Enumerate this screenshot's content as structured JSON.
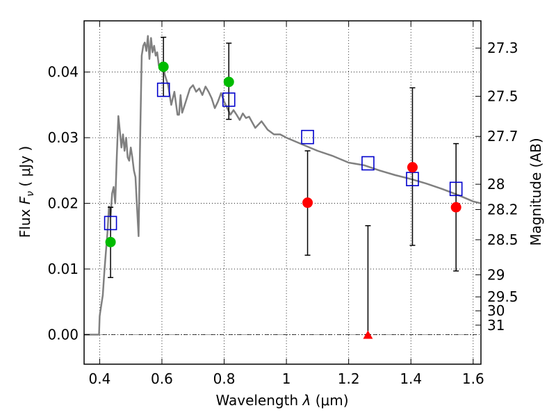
{
  "chart_data": {
    "type": "scatter",
    "xlabel_main": "Wavelength",
    "xlabel_var": "λ",
    "xlabel_unit": "(μm)",
    "ylabel_main": "Flux",
    "ylabel_var": "F",
    "ylabel_sub": "ν",
    "ylabel_unit": "( μJy )",
    "y2label": "Magnitude (AB)",
    "xlim": [
      0.35,
      1.625
    ],
    "ylim": [
      -0.0045,
      0.0478
    ],
    "x_ticks": [
      {
        "value": 0.4,
        "label": "0.4"
      },
      {
        "value": 0.6,
        "label": "0.6"
      },
      {
        "value": 0.8,
        "label": "0.8"
      },
      {
        "value": 1.0,
        "label": "1"
      },
      {
        "value": 1.2,
        "label": "1.2"
      },
      {
        "value": 1.4,
        "label": "1.4"
      },
      {
        "value": 1.6,
        "label": "1.6"
      }
    ],
    "y_ticks": [
      {
        "value": 0.0,
        "label": "0.00"
      },
      {
        "value": 0.01,
        "label": "0.01"
      },
      {
        "value": 0.02,
        "label": "0.02"
      },
      {
        "value": 0.03,
        "label": "0.03"
      },
      {
        "value": 0.04,
        "label": "0.04"
      }
    ],
    "y2_ticks": [
      {
        "mag": 27.3,
        "label": "27.3"
      },
      {
        "mag": 27.5,
        "label": "27.5"
      },
      {
        "mag": 27.7,
        "label": "27.7"
      },
      {
        "mag": 28.0,
        "label": "28"
      },
      {
        "mag": 28.2,
        "label": "28.2"
      },
      {
        "mag": 28.5,
        "label": "28.5"
      },
      {
        "mag": 29.0,
        "label": "29"
      },
      {
        "mag": 29.5,
        "label": "29.5"
      },
      {
        "mag": 30.0,
        "label": "30"
      },
      {
        "mag": 31.0,
        "label": "31"
      }
    ],
    "grid": true,
    "zero_line": true,
    "colors": {
      "model": "#808080",
      "model_photometry": "#0000cc",
      "green_detection": "#00bb00",
      "red_detection": "#ff0000",
      "error_bar": "#000000"
    },
    "series": [
      {
        "name": "model-spectrum",
        "kind": "line",
        "x": [
          0.35,
          0.398,
          0.4,
          0.402,
          0.41,
          0.415,
          0.42,
          0.425,
          0.43,
          0.435,
          0.44,
          0.445,
          0.45,
          0.455,
          0.46,
          0.465,
          0.47,
          0.475,
          0.48,
          0.485,
          0.49,
          0.495,
          0.5,
          0.505,
          0.51,
          0.515,
          0.52,
          0.525,
          0.53,
          0.535,
          0.54,
          0.545,
          0.55,
          0.555,
          0.56,
          0.565,
          0.57,
          0.575,
          0.58,
          0.585,
          0.59,
          0.595,
          0.6,
          0.605,
          0.61,
          0.62,
          0.63,
          0.64,
          0.65,
          0.655,
          0.66,
          0.665,
          0.67,
          0.68,
          0.69,
          0.7,
          0.71,
          0.72,
          0.73,
          0.74,
          0.75,
          0.76,
          0.77,
          0.78,
          0.79,
          0.8,
          0.81,
          0.82,
          0.83,
          0.84,
          0.85,
          0.86,
          0.87,
          0.88,
          0.9,
          0.92,
          0.94,
          0.96,
          0.98,
          1.0,
          1.05,
          1.1,
          1.15,
          1.2,
          1.25,
          1.3,
          1.35,
          1.4,
          1.45,
          1.5,
          1.55,
          1.6,
          1.625
        ],
        "y": [
          0.0,
          0.0,
          0.0028,
          0.0035,
          0.006,
          0.0095,
          0.0125,
          0.0155,
          0.0195,
          0.018,
          0.0215,
          0.0225,
          0.02,
          0.027,
          0.0333,
          0.031,
          0.0285,
          0.0305,
          0.028,
          0.03,
          0.027,
          0.0265,
          0.0285,
          0.027,
          0.025,
          0.024,
          0.0195,
          0.015,
          0.0295,
          0.0425,
          0.044,
          0.0445,
          0.0432,
          0.0455,
          0.042,
          0.0452,
          0.043,
          0.044,
          0.0425,
          0.043,
          0.041,
          0.041,
          0.0415,
          0.0405,
          0.0395,
          0.038,
          0.035,
          0.037,
          0.0335,
          0.0335,
          0.0365,
          0.0338,
          0.0345,
          0.036,
          0.0375,
          0.038,
          0.037,
          0.0375,
          0.0365,
          0.0378,
          0.037,
          0.036,
          0.0345,
          0.0355,
          0.0368,
          0.0355,
          0.0345,
          0.0335,
          0.0342,
          0.0335,
          0.0327,
          0.0337,
          0.033,
          0.0332,
          0.0315,
          0.0325,
          0.0312,
          0.0305,
          0.0305,
          0.03,
          0.029,
          0.028,
          0.0272,
          0.0262,
          0.0258,
          0.025,
          0.0243,
          0.0237,
          0.023,
          0.0222,
          0.0213,
          0.0203,
          0.02
        ]
      },
      {
        "name": "model-photometry",
        "kind": "open-square",
        "x": [
          0.435,
          0.605,
          0.815,
          1.068,
          1.262,
          1.405,
          1.545
        ],
        "y": [
          0.017,
          0.0373,
          0.0358,
          0.0301,
          0.0261,
          0.0237,
          0.0222
        ]
      },
      {
        "name": "observed-green",
        "kind": "filled-circle",
        "x": [
          0.435,
          0.605,
          0.815
        ],
        "y": [
          0.0141,
          0.0408,
          0.0385
        ],
        "yerr_low": [
          0.0087,
          0.0363,
          0.0328
        ],
        "yerr_high": [
          0.0194,
          0.0453,
          0.0444
        ]
      },
      {
        "name": "observed-red",
        "kind": "filled-circle",
        "x": [
          1.068,
          1.405,
          1.545
        ],
        "y": [
          0.0201,
          0.0255,
          0.0194
        ],
        "yerr_low": [
          0.0121,
          0.0136,
          0.0097
        ],
        "yerr_high": [
          0.028,
          0.0376,
          0.0291
        ]
      },
      {
        "name": "upper-limit",
        "kind": "triangle",
        "x": [
          1.262
        ],
        "y": [
          0.0
        ],
        "yerr_low": [
          0.0
        ],
        "yerr_high": [
          0.0166
        ]
      }
    ]
  }
}
